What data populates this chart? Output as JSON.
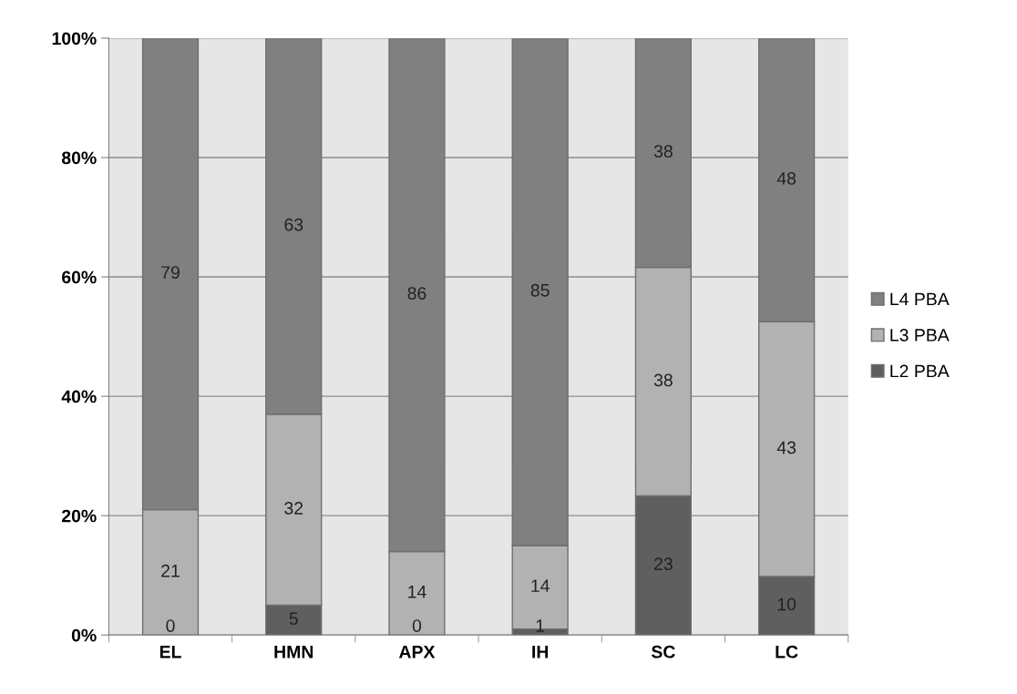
{
  "chart_data": {
    "type": "bar",
    "stacked": true,
    "categories": [
      "EL",
      "HMN",
      "APX",
      "IH",
      "SC",
      "LC"
    ],
    "series": [
      {
        "name": "L2 PBA",
        "color": "#5f5f5f",
        "values": [
          0,
          5,
          0,
          1,
          23.3,
          9.8
        ],
        "value_labels": [
          "0",
          "5",
          "0",
          "1",
          "23",
          "10"
        ]
      },
      {
        "name": "L3 PBA",
        "color": "#b2b2b2",
        "values": [
          21,
          32,
          14,
          14,
          38.3,
          42.7
        ],
        "value_labels": [
          "21",
          "32",
          "14",
          "14",
          "38",
          "43"
        ]
      },
      {
        "name": "L4 PBA",
        "color": "#808080",
        "values": [
          79,
          63,
          86,
          85,
          38.4,
          47.5
        ],
        "value_labels": [
          "79",
          "63",
          "86",
          "85",
          "38",
          "48"
        ]
      }
    ],
    "ylim": [
      0,
      100
    ],
    "yticks": [
      {
        "value": 0,
        "label": "0%"
      },
      {
        "value": 20,
        "label": "20%"
      },
      {
        "value": 40,
        "label": "40%"
      },
      {
        "value": 60,
        "label": "60%"
      },
      {
        "value": 80,
        "label": "80%"
      },
      {
        "value": 100,
        "label": "100%"
      }
    ],
    "grid": true,
    "legend": "right"
  }
}
